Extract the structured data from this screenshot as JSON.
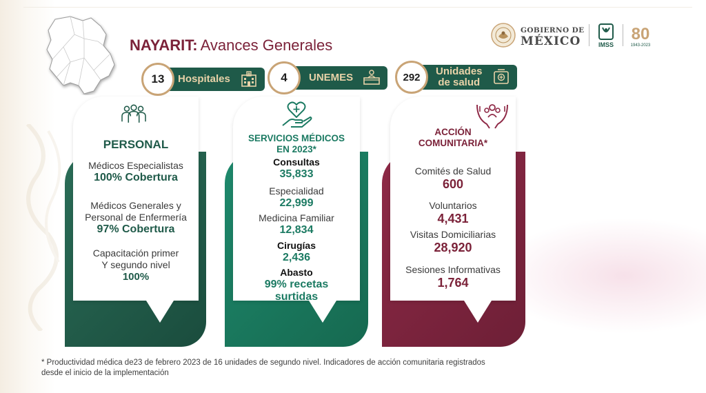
{
  "header": {
    "title_bold": "NAYARIT:",
    "title_rest": "Avances Generales"
  },
  "logos": {
    "gobierno_small": "GOBIERNO DE",
    "gobierno_big": "MÉXICO",
    "imss": "IMSS",
    "anniversary": "80",
    "anniversary_sub": "1943-2023"
  },
  "stats": [
    {
      "number": "13",
      "label": "Hospitales",
      "icon": "hospital-icon"
    },
    {
      "number": "4",
      "label": "UNEMES",
      "icon": "reception-desk-icon"
    },
    {
      "number": "292",
      "label_line1": "Unidades",
      "label_line2": "de salud",
      "icon": "medical-unit-icon"
    }
  ],
  "cards": {
    "personal": {
      "title": "PERSONAL",
      "icon": "people-icon",
      "items": [
        {
          "label": "Médicos Especialistas",
          "value": "100% Cobertura"
        },
        {
          "label_line1": "Médicos Generales y",
          "label_line2": "Personal de Enfermería",
          "value": "97% Cobertura"
        },
        {
          "label_line1": "Capacitación primer",
          "label_line2": "Y segundo nivel",
          "value": "100%"
        }
      ]
    },
    "servicios": {
      "title_line1": "SERVICIOS MÉDICOS",
      "title_line2": "EN 2023*",
      "icon": "heart-hand-icon",
      "items": [
        {
          "label": "Consultas",
          "value": "35,833"
        },
        {
          "label": "Especialidad",
          "value": "22,999"
        },
        {
          "label": "Medicina Familiar",
          "value": "12,834"
        },
        {
          "label": "Cirugías",
          "value": "2,436"
        },
        {
          "label": "Abasto",
          "value_line1": "99% recetas",
          "value_line2": "surtidas"
        }
      ]
    },
    "accion": {
      "title_line1": "ACCIÓN",
      "title_line2": "COMUNITARIA*",
      "icon": "community-hands-icon",
      "items": [
        {
          "label": "Comités de Salud",
          "value": "600"
        },
        {
          "label": "Voluntarios",
          "value": "4,431"
        },
        {
          "label": "Visitas Domiciliarias",
          "value": "28,920"
        },
        {
          "label": "Sesiones Informativas",
          "value": "1,764"
        }
      ]
    }
  },
  "footnote": {
    "line1": "* Productividad médica de23 de febrero 2023 de 16 unidades de segundo nivel. Indicadores de acción comunitaria registrados",
    "line2": "desde el inicio de la implementación"
  },
  "colors": {
    "green_dark": "#1f5a49",
    "green_teal": "#1b7a62",
    "maroon": "#7b2239",
    "gold": "#c9a476",
    "gold_text": "#e8d2a8"
  }
}
